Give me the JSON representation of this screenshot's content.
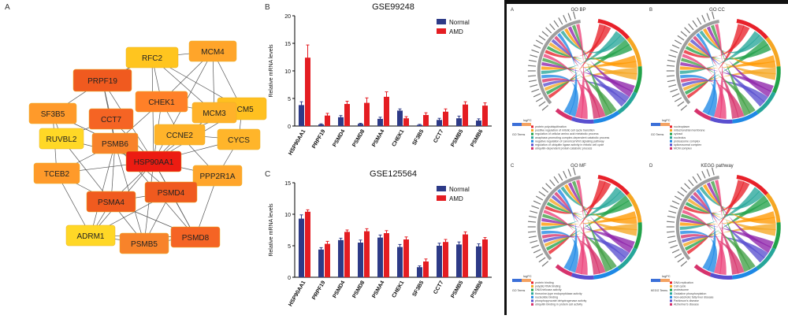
{
  "network": {
    "panel_letter": "A",
    "nodes": [
      {
        "id": "RFC2",
        "color": "#ffc51f"
      },
      {
        "id": "MCM4",
        "color": "#ffa52a"
      },
      {
        "id": "PRPF19",
        "color": "#f05a1f"
      },
      {
        "id": "MCM5",
        "color": "#ffc020"
      },
      {
        "id": "CHEK1",
        "color": "#ff8028"
      },
      {
        "id": "SF3B5",
        "color": "#ff9a2a"
      },
      {
        "id": "CCT7",
        "color": "#f56424"
      },
      {
        "id": "MCM3",
        "color": "#ffb22a"
      },
      {
        "id": "RUVBL2",
        "color": "#ffd826"
      },
      {
        "id": "PSMB6",
        "color": "#f8832a"
      },
      {
        "id": "CCNE2",
        "color": "#ffb32a"
      },
      {
        "id": "CYCS",
        "color": "#ffb52a"
      },
      {
        "id": "HSP90AA1",
        "color": "#ec1c12"
      },
      {
        "id": "TCEB2",
        "color": "#ff9a2a"
      },
      {
        "id": "PPP2R1A",
        "color": "#ffa52a"
      },
      {
        "id": "PSMA4",
        "color": "#f05b1f"
      },
      {
        "id": "PSMD4",
        "color": "#f05a1f"
      },
      {
        "id": "ADRM1",
        "color": "#ffd726"
      },
      {
        "id": "PSMB5",
        "color": "#f8832a"
      },
      {
        "id": "PSMD8",
        "color": "#f56424"
      }
    ]
  },
  "chart_data": [
    {
      "panel_letter": "B",
      "type": "bar",
      "title": "GSE99248",
      "ylabel": "Relative mRNA levels",
      "ylim": [
        0,
        20
      ],
      "yticks": [
        0,
        5,
        10,
        15,
        20
      ],
      "categories": [
        "HSP90AA1",
        "PRPF19",
        "PSMD4",
        "PSMD8",
        "PSMA4",
        "CHEK1",
        "SF3B5",
        "CCT7",
        "PSMB5",
        "PSMB6"
      ],
      "series": [
        {
          "name": "Normal",
          "color": "#2d3a87",
          "values": [
            3.8,
            0.3,
            1.6,
            0.4,
            1.3,
            2.8,
            0.2,
            1.1,
            1.4,
            1.0
          ],
          "errors": [
            0.6,
            0.1,
            0.3,
            0.1,
            0.3,
            0.3,
            0.1,
            0.3,
            0.4,
            0.3
          ]
        },
        {
          "name": "AMD",
          "color": "#e41d22",
          "values": [
            12.4,
            1.9,
            4.0,
            4.2,
            5.3,
            1.4,
            2.0,
            2.6,
            3.9,
            3.7
          ],
          "errors": [
            2.3,
            0.4,
            0.5,
            0.9,
            0.9,
            0.3,
            0.4,
            0.5,
            0.5,
            0.5
          ]
        }
      ],
      "legend": "top-right"
    },
    {
      "panel_letter": "C",
      "type": "bar",
      "title": "GSE125564",
      "ylabel": "Relative mRNA levels",
      "ylim": [
        0,
        15
      ],
      "yticks": [
        0,
        5,
        10,
        15
      ],
      "categories": [
        "HSP90AA1",
        "PRPF19",
        "PSMD4",
        "PSMD8",
        "PSMA4",
        "CHEK1",
        "SF3B5",
        "CCT7",
        "PSMB5",
        "PSMB6"
      ],
      "series": [
        {
          "name": "Normal",
          "color": "#2d3a87",
          "values": [
            9.3,
            4.4,
            5.9,
            5.5,
            6.3,
            4.8,
            1.6,
            5.0,
            5.2,
            4.9
          ],
          "errors": [
            0.6,
            0.3,
            0.3,
            0.4,
            0.4,
            0.4,
            0.2,
            0.4,
            0.4,
            0.4
          ]
        },
        {
          "name": "AMD",
          "color": "#e41d22",
          "values": [
            10.4,
            5.3,
            7.2,
            7.3,
            7.0,
            6.0,
            2.5,
            5.6,
            6.8,
            6.0
          ],
          "errors": [
            0.3,
            0.4,
            0.3,
            0.4,
            0.4,
            0.4,
            0.4,
            0.4,
            0.4,
            0.3
          ]
        }
      ],
      "legend": "top-right"
    }
  ],
  "go": {
    "panels": [
      {
        "letter": "A",
        "title": "GO BP",
        "legend_title": "GO Terms",
        "legend_items": [
          "protein polyubiquitination",
          "positive regulation of mitotic cell cycle transition",
          "regulation of cellular amino acid metabolic process",
          "anaphase-promoting complex-dependent catabolic process",
          "negative regulation of canonical Wnt signaling pathway",
          "regulation of ubiquitin ligase activity in mitotic cell cycle",
          "ubiquitin-dependent protein catabolic process"
        ]
      },
      {
        "letter": "B",
        "title": "GO CC",
        "legend_title": "GO Terms",
        "legend_items": [
          "nucleoplasm",
          "mitochondrial membrane",
          "cytosol",
          "nucleolus",
          "proteasome complex",
          "spliceosomal complex",
          "MCM complex"
        ]
      },
      {
        "letter": "C",
        "title": "GO MF",
        "legend_title": "GO Terms",
        "legend_items": [
          "protein binding",
          "poly(A) RNA binding",
          "DNA helicase activity",
          "threonine-type endopeptidase activity",
          "nucleotide binding",
          "phosphopyruvate dehydrogenase activity",
          "ubiquitin binding in protein cell activity"
        ]
      },
      {
        "letter": "D",
        "title": "KEGG pathway",
        "legend_title": "KEGG Terms",
        "legend_items": [
          "DNA replication",
          "Cell cycle",
          "proteasome",
          "Oxidative phosphorylation",
          "Non-alcoholic fatty liver disease",
          "Parkinson's disease",
          "Alzheimer's disease"
        ]
      }
    ],
    "logfc_label": "logFC",
    "ribbon_colors": [
      "#e8212a",
      "#22a24a",
      "#f5a623",
      "#5a4fcf",
      "#d6336c",
      "#1e88e5",
      "#26a69a",
      "#ff9800",
      "#8e24aa",
      "#43a047",
      "#ec407a"
    ]
  }
}
